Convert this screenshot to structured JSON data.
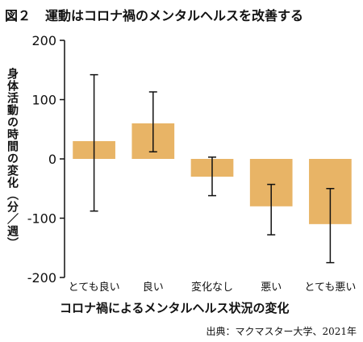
{
  "title": {
    "figure_number": "図２",
    "text": "運動はコロナ禍のメンタルヘルスを改善する"
  },
  "source": "出典：マクマスター大学、2021年",
  "chart_data": {
    "type": "bar",
    "categories": [
      "とても良い",
      "良い",
      "変化なし",
      "悪い",
      "とても悪い"
    ],
    "values": [
      30,
      60,
      -30,
      -80,
      -110
    ],
    "error_low": [
      -88,
      12,
      -62,
      -128,
      -175
    ],
    "error_high": [
      142,
      113,
      3,
      -43,
      -50
    ],
    "ylabel": "身体活動の時間の変化（分／週）",
    "xlabel": "コロナ禍によるメンタルヘルス状況の変化",
    "ylim": [
      -200,
      200
    ],
    "yticks": [
      200,
      100,
      0,
      -100,
      -200
    ],
    "grid": false,
    "colors": {
      "bar": "#e8b466",
      "axis": "#111111"
    }
  }
}
